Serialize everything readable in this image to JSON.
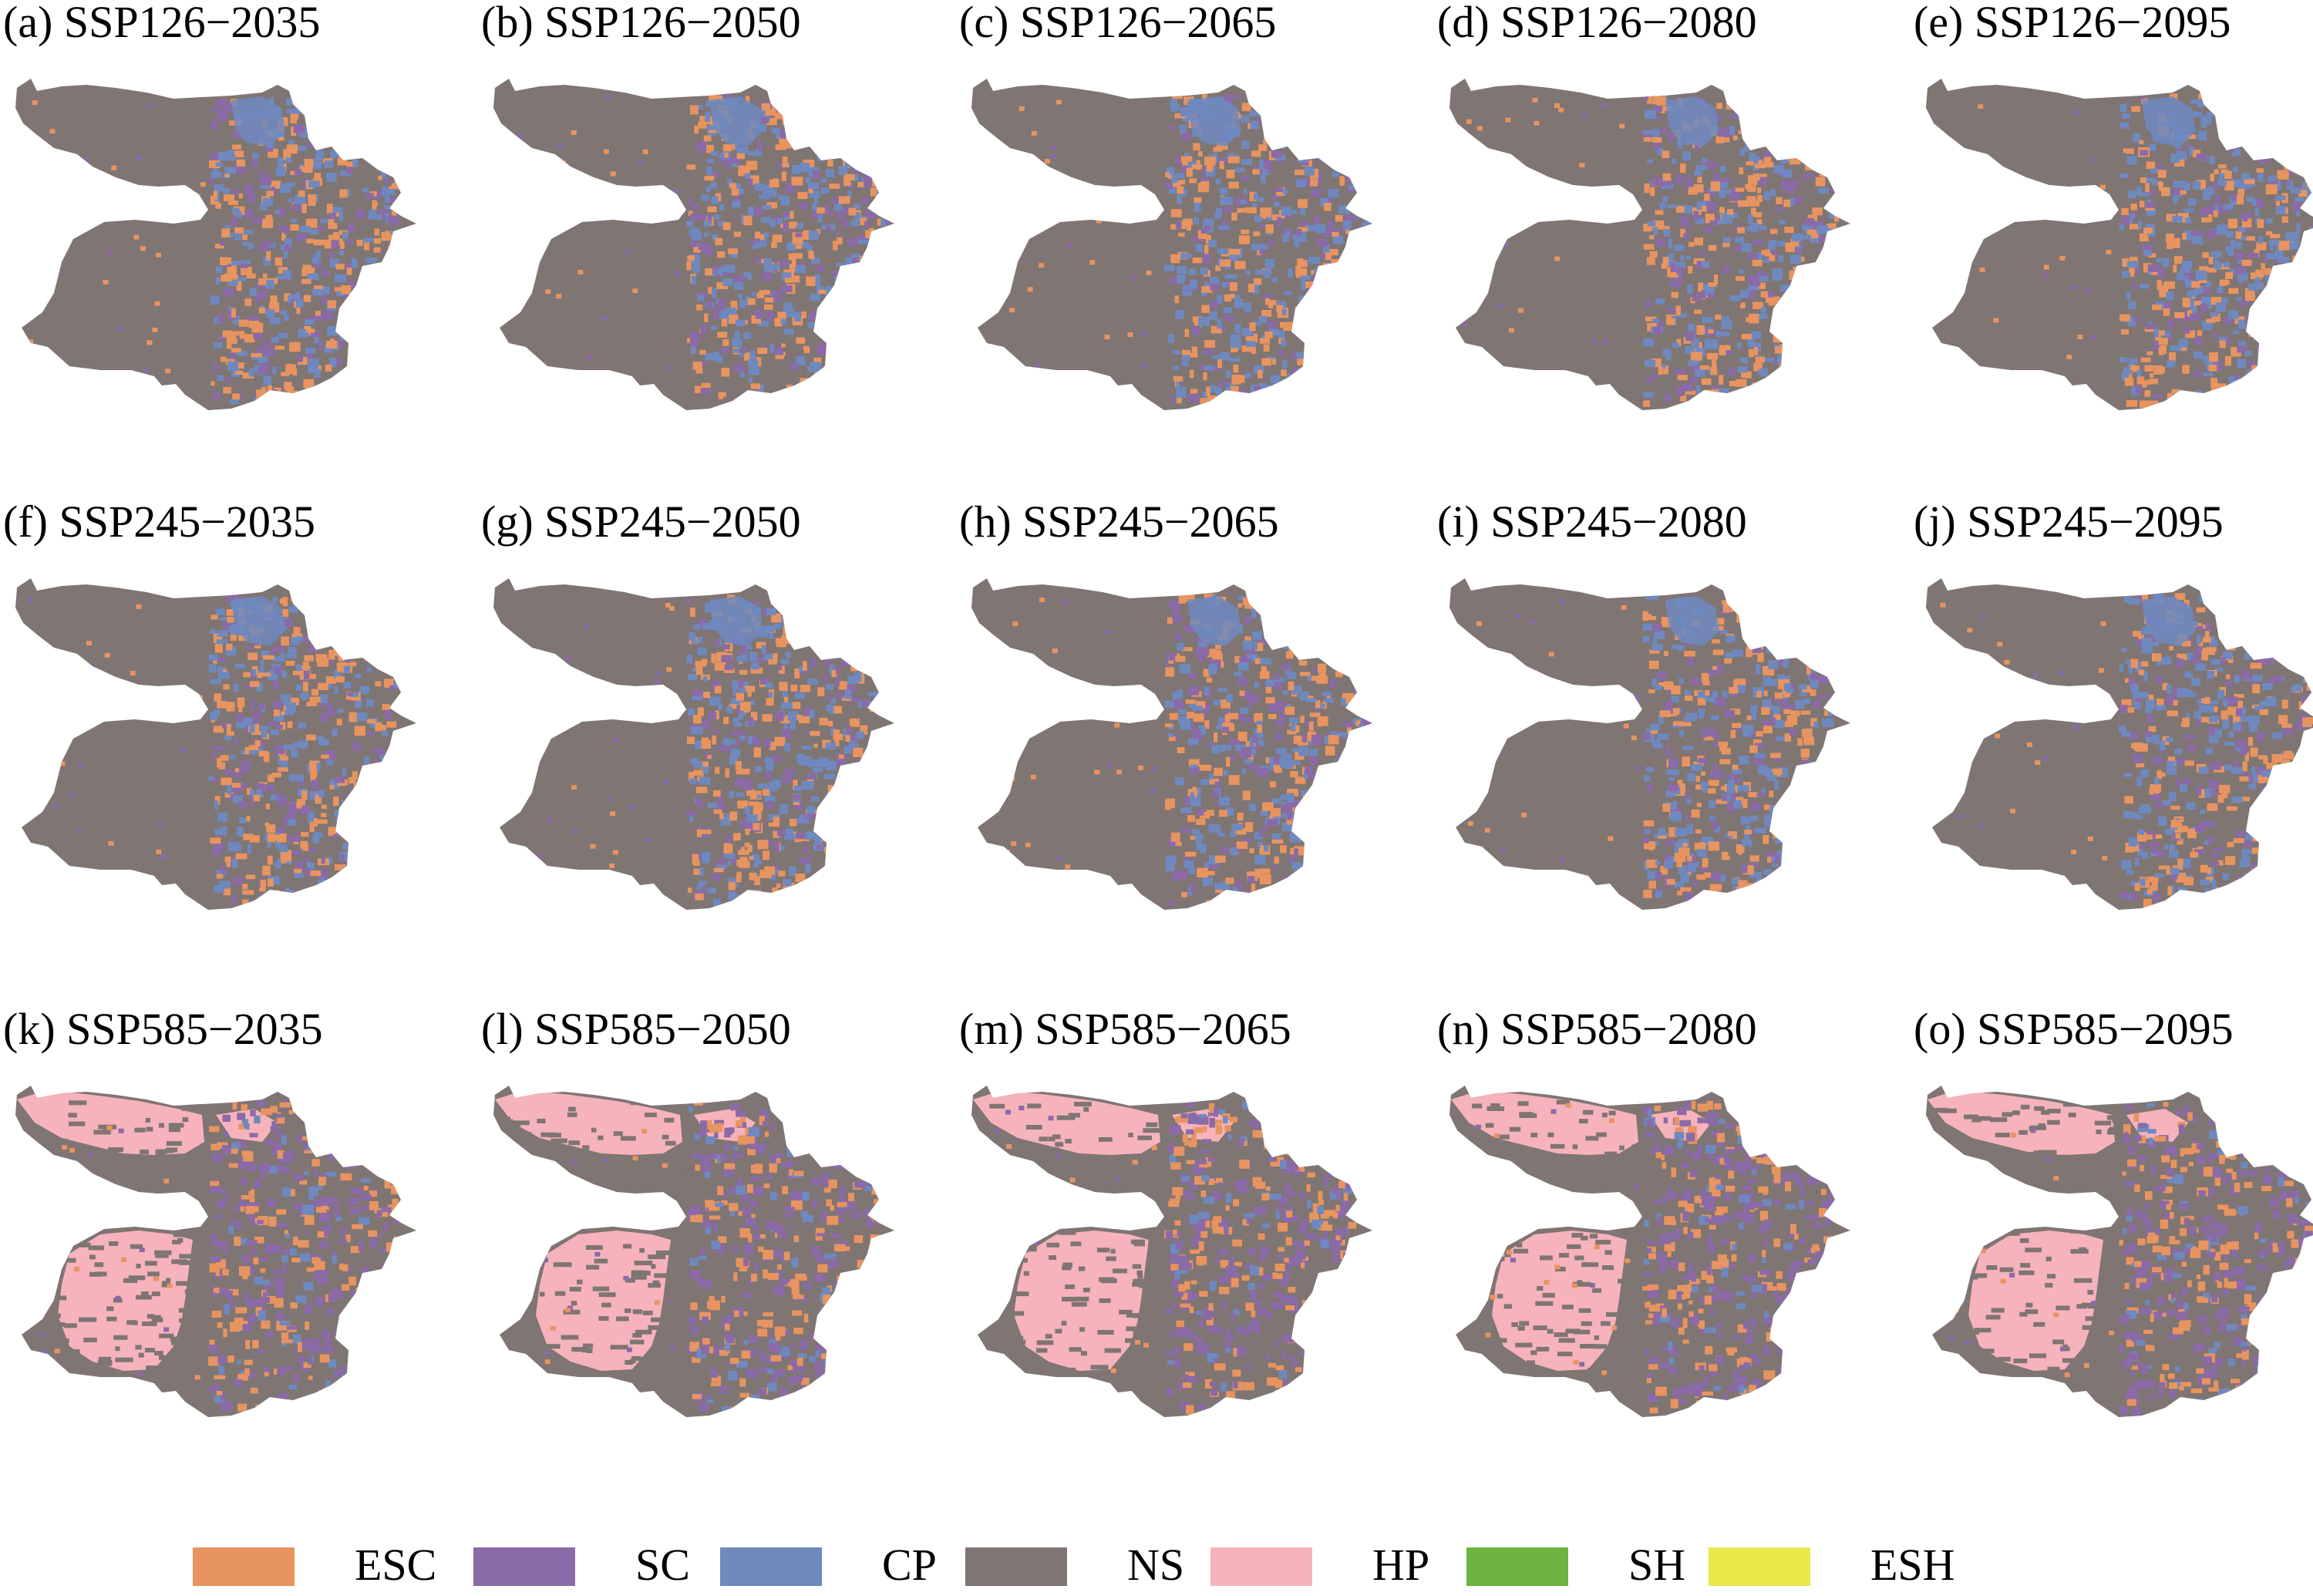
{
  "panels": [
    {
      "title": "(a) SSP126−2035",
      "scenario": "SSP126",
      "year": 2035,
      "hp": 0.0
    },
    {
      "title": "(b) SSP126−2050",
      "scenario": "SSP126",
      "year": 2050,
      "hp": 0.0
    },
    {
      "title": "(c) SSP126−2065",
      "scenario": "SSP126",
      "year": 2065,
      "hp": 0.0
    },
    {
      "title": "(d) SSP126−2080",
      "scenario": "SSP126",
      "year": 2080,
      "hp": 0.0
    },
    {
      "title": "(e) SSP126−2095",
      "scenario": "SSP126",
      "year": 2095,
      "hp": 0.0
    },
    {
      "title": "(f) SSP245−2035",
      "scenario": "SSP245",
      "year": 2035,
      "hp": 0.0
    },
    {
      "title": "(g) SSP245−2050",
      "scenario": "SSP245",
      "year": 2050,
      "hp": 0.0
    },
    {
      "title": "(h) SSP245−2065",
      "scenario": "SSP245",
      "year": 2065,
      "hp": 0.0
    },
    {
      "title": "(i) SSP245−2080",
      "scenario": "SSP245",
      "year": 2080,
      "hp": 0.0
    },
    {
      "title": "(j) SSP245−2095",
      "scenario": "SSP245",
      "year": 2095,
      "hp": 0.0
    },
    {
      "title": "(k) SSP585−2035",
      "scenario": "SSP585",
      "year": 2035,
      "hp": 0.45
    },
    {
      "title": "(l) SSP585−2050",
      "scenario": "SSP585",
      "year": 2050,
      "hp": 0.45
    },
    {
      "title": "(m) SSP585−2065",
      "scenario": "SSP585",
      "year": 2065,
      "hp": 0.3
    },
    {
      "title": "(n) SSP585−2080",
      "scenario": "SSP585",
      "year": 2080,
      "hp": 0.45
    },
    {
      "title": "(o) SSP585−2095",
      "scenario": "SSP585",
      "year": 2095,
      "hp": 0.45
    }
  ],
  "legend": [
    {
      "label": "ESC",
      "color": "#e89460"
    },
    {
      "label": "SC",
      "color": "#8b6aa8"
    },
    {
      "label": "CP",
      "color": "#6f89bf"
    },
    {
      "label": "NS",
      "color": "#7f7573"
    },
    {
      "label": "HP",
      "color": "#f6b3bb"
    },
    {
      "label": "SH",
      "color": "#6cb33f"
    },
    {
      "label": "ESH",
      "color": "#e8e84a"
    }
  ]
}
